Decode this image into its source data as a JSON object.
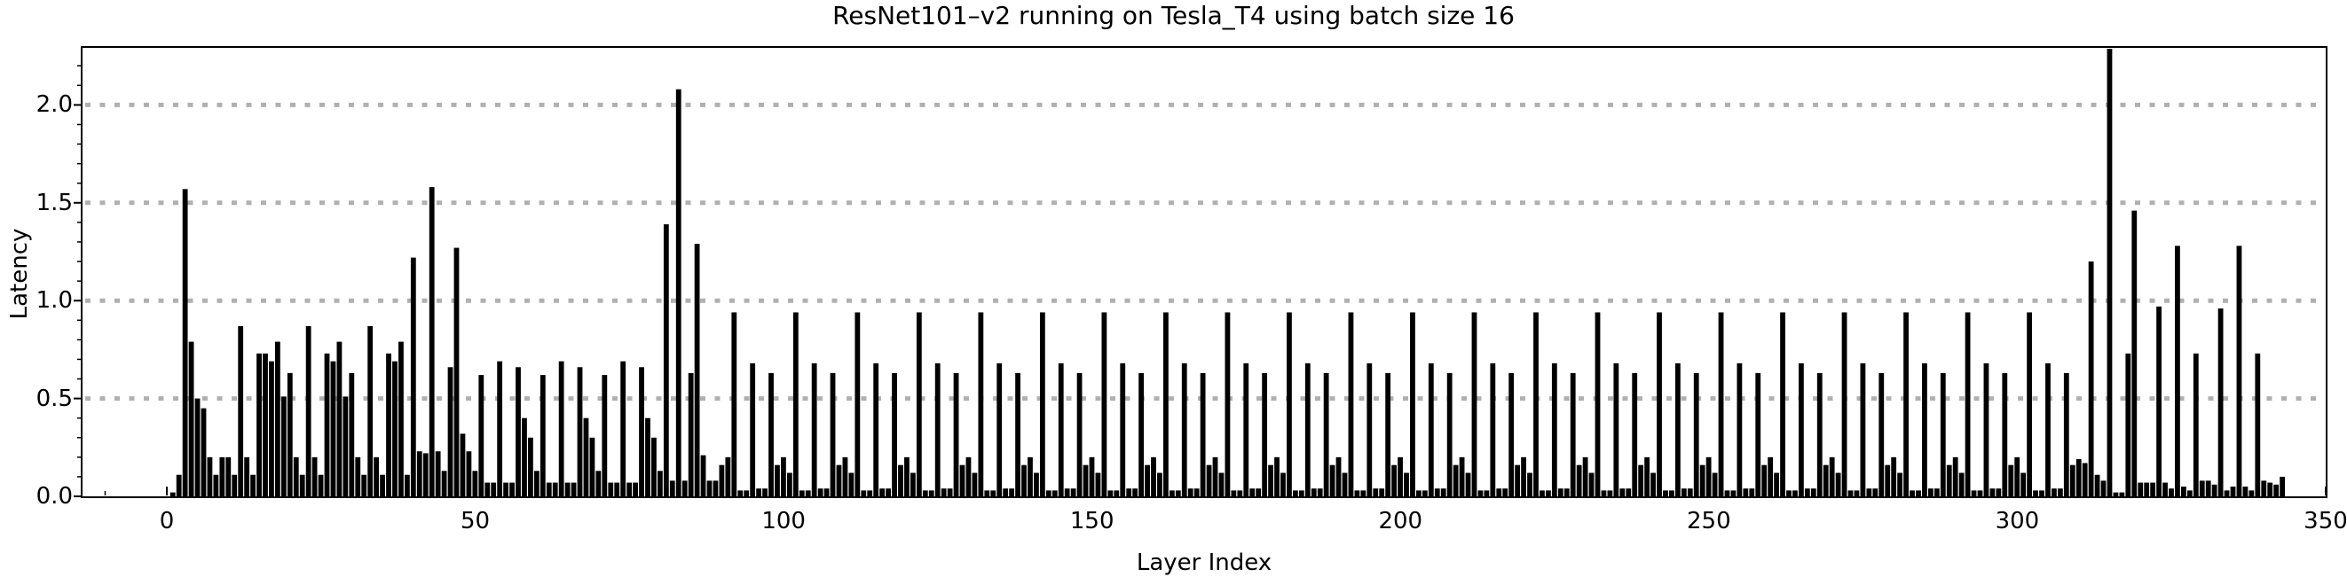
{
  "figure": {
    "background": "#ffffff",
    "text_color": "#000000"
  },
  "chart_data": {
    "type": "bar",
    "title": "ResNet101–v2 running on Tesla_T4 using batch size 16",
    "xlabel": "Layer Index",
    "ylabel": "Latency",
    "bar_color": "#000000",
    "frame_color": "#000000",
    "gridline_color": "#b0b0b0",
    "gridline_style": "dotted",
    "gridline_values": [
      0.5,
      1.0,
      1.5,
      2.0
    ],
    "x_tick_labels": [
      "0",
      "50",
      "100",
      "150",
      "200",
      "250",
      "300",
      "350"
    ],
    "x_tick_values": [
      0,
      50,
      100,
      150,
      200,
      250,
      300,
      350
    ],
    "x_minor_tick_step": 10,
    "y_tick_labels": [
      "0.0",
      "0.5",
      "1.0",
      "1.5",
      "2.0"
    ],
    "y_tick_values": [
      0,
      0.5,
      1.0,
      1.5,
      2.0
    ],
    "y_minor_tick_step": 0.1,
    "xlim": [
      -14,
      350
    ],
    "ylim": [
      0,
      2.29
    ],
    "x_start_index": 0,
    "values": [
      0.02,
      0.11,
      1.57,
      0.79,
      0.5,
      0.45,
      0.2,
      0.11,
      0.2,
      0.2,
      0.11,
      0.87,
      0.2,
      0.11,
      0.73,
      0.73,
      0.69,
      0.79,
      0.51,
      0.63,
      0.2,
      0.11,
      0.87,
      0.2,
      0.11,
      0.73,
      0.69,
      0.79,
      0.51,
      0.63,
      0.2,
      0.11,
      0.87,
      0.2,
      0.11,
      0.73,
      0.69,
      0.79,
      0.11,
      1.22,
      0.23,
      0.22,
      1.58,
      0.23,
      0.13,
      0.66,
      1.27,
      0.32,
      0.23,
      0.13,
      0.62,
      0.07,
      0.07,
      0.69,
      0.07,
      0.07,
      0.66,
      0.4,
      0.3,
      0.13,
      0.62,
      0.07,
      0.07,
      0.69,
      0.07,
      0.07,
      0.66,
      0.4,
      0.3,
      0.13,
      0.62,
      0.07,
      0.07,
      0.69,
      0.07,
      0.07,
      0.66,
      0.4,
      0.3,
      0.13,
      1.39,
      0.08,
      2.08,
      0.08,
      0.63,
      1.29,
      0.21,
      0.08,
      0.08,
      0.16,
      0.2,
      0.94,
      0.03,
      0.03,
      0.68,
      0.04,
      0.04,
      0.63,
      0.16,
      0.2,
      0.12,
      0.94,
      0.03,
      0.03,
      0.68,
      0.04,
      0.04,
      0.63,
      0.16,
      0.2,
      0.12,
      0.94,
      0.03,
      0.03,
      0.68,
      0.04,
      0.04,
      0.63,
      0.16,
      0.2,
      0.12,
      0.94,
      0.03,
      0.03,
      0.68,
      0.04,
      0.04,
      0.63,
      0.16,
      0.2,
      0.12,
      0.94,
      0.03,
      0.03,
      0.68,
      0.04,
      0.04,
      0.63,
      0.16,
      0.2,
      0.12,
      0.94,
      0.03,
      0.03,
      0.68,
      0.04,
      0.04,
      0.63,
      0.16,
      0.2,
      0.12,
      0.94,
      0.03,
      0.03,
      0.68,
      0.04,
      0.04,
      0.63,
      0.16,
      0.2,
      0.12,
      0.94,
      0.03,
      0.03,
      0.68,
      0.04,
      0.04,
      0.63,
      0.16,
      0.2,
      0.12,
      0.94,
      0.03,
      0.03,
      0.68,
      0.04,
      0.04,
      0.63,
      0.16,
      0.2,
      0.12,
      0.94,
      0.03,
      0.03,
      0.68,
      0.04,
      0.04,
      0.63,
      0.16,
      0.2,
      0.12,
      0.94,
      0.03,
      0.03,
      0.68,
      0.04,
      0.04,
      0.63,
      0.16,
      0.2,
      0.12,
      0.94,
      0.03,
      0.03,
      0.68,
      0.04,
      0.04,
      0.63,
      0.16,
      0.2,
      0.12,
      0.94,
      0.03,
      0.03,
      0.68,
      0.04,
      0.04,
      0.63,
      0.16,
      0.2,
      0.12,
      0.94,
      0.03,
      0.03,
      0.68,
      0.04,
      0.04,
      0.63,
      0.16,
      0.2,
      0.12,
      0.94,
      0.03,
      0.03,
      0.68,
      0.04,
      0.04,
      0.63,
      0.16,
      0.2,
      0.12,
      0.94,
      0.03,
      0.03,
      0.68,
      0.04,
      0.04,
      0.63,
      0.16,
      0.2,
      0.12,
      0.94,
      0.03,
      0.03,
      0.68,
      0.04,
      0.04,
      0.63,
      0.16,
      0.2,
      0.12,
      0.94,
      0.03,
      0.03,
      0.68,
      0.04,
      0.04,
      0.63,
      0.16,
      0.2,
      0.12,
      0.94,
      0.03,
      0.03,
      0.68,
      0.04,
      0.04,
      0.63,
      0.16,
      0.2,
      0.12,
      0.94,
      0.03,
      0.03,
      0.68,
      0.04,
      0.04,
      0.63,
      0.16,
      0.2,
      0.12,
      0.94,
      0.03,
      0.03,
      0.68,
      0.04,
      0.04,
      0.63,
      0.16,
      0.2,
      0.12,
      0.94,
      0.03,
      0.03,
      0.68,
      0.04,
      0.04,
      0.63,
      0.16,
      0.19,
      0.17,
      1.2,
      0.11,
      0.08,
      2.29,
      0.02,
      0.02,
      0.73,
      1.46,
      0.07,
      0.07,
      0.07,
      0.97,
      0.07,
      0.04,
      1.28,
      0.05,
      0.03,
      0.73,
      0.08,
      0.08,
      0.06,
      0.96,
      0.03,
      0.05,
      1.28,
      0.05,
      0.03,
      0.73,
      0.08,
      0.07,
      0.06,
      0.1
    ]
  }
}
